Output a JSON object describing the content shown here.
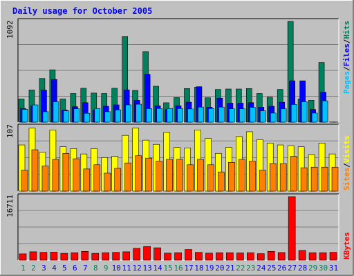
{
  "title": "Daily usage for October 2005",
  "colors": {
    "background": "#c0c0c0",
    "plot_bg": "#c0c0c0",
    "title": "#0000ff",
    "hits": "#00805c",
    "files": "#0000ff",
    "pages": "#00c0ff",
    "visits": "#ffff00",
    "sites": "#ff8000",
    "kbytes": "#ff0000",
    "weekend_label": "#00805c",
    "weekday_label": "#0000ff"
  },
  "chart_data": [
    {
      "type": "bar",
      "name": "hits-files-pages",
      "ymax_label": "1092",
      "ylim": [
        0,
        1092
      ],
      "legend": [
        "Pages",
        "Files",
        "Hits"
      ],
      "categories": [
        "1",
        "2",
        "3",
        "4",
        "5",
        "6",
        "7",
        "8",
        "9",
        "10",
        "11",
        "12",
        "13",
        "14",
        "15",
        "16",
        "17",
        "18",
        "19",
        "20",
        "21",
        "22",
        "23",
        "24",
        "25",
        "26",
        "27",
        "28",
        "29",
        "30",
        "31"
      ],
      "series": [
        {
          "name": "Hits",
          "values": [
            251,
            349,
            473,
            567,
            251,
            310,
            367,
            315,
            310,
            367,
            929,
            344,
            764,
            389,
            210,
            266,
            364,
            378,
            264,
            354,
            359,
            359,
            364,
            310,
            271,
            354,
            1092,
            251,
            236,
            646,
            1
          ]
        },
        {
          "name": "Files",
          "values": [
            148,
            177,
            347,
            463,
            132,
            167,
            211,
            132,
            172,
            187,
            350,
            236,
            518,
            177,
            137,
            177,
            216,
            384,
            162,
            260,
            206,
            206,
            211,
            162,
            172,
            216,
            448,
            448,
            137,
            325,
            1
          ]
        },
        {
          "name": "Pages",
          "values": [
            139,
            187,
            113,
            221,
            123,
            145,
            96,
            148,
            113,
            133,
            187,
            194,
            147,
            148,
            148,
            148,
            143,
            163,
            148,
            163,
            145,
            145,
            160,
            123,
            98,
            145,
            192,
            221,
            98,
            231,
            1
          ]
        }
      ]
    },
    {
      "type": "bar",
      "name": "visits-sites",
      "ymax_label": "107",
      "ylim": [
        0,
        107
      ],
      "legend": [
        "Sites",
        "Visits"
      ],
      "categories": [
        "1",
        "2",
        "3",
        "4",
        "5",
        "6",
        "7",
        "8",
        "9",
        "10",
        "11",
        "12",
        "13",
        "14",
        "15",
        "16",
        "17",
        "18",
        "19",
        "20",
        "21",
        "22",
        "23",
        "24",
        "25",
        "26",
        "27",
        "28",
        "29",
        "30",
        "31"
      ],
      "series": [
        {
          "name": "Visits",
          "values": [
            77,
            105,
            65,
            102,
            74,
            71,
            62,
            71,
            56,
            58,
            93,
            105,
            85,
            78,
            98,
            73,
            72,
            102,
            88,
            63,
            73,
            91,
            99,
            86,
            80,
            77,
            76,
            74,
            61,
            80,
            62
          ]
        },
        {
          "name": "Sites",
          "values": [
            35,
            69,
            42,
            53,
            63,
            54,
            37,
            44,
            30,
            38,
            47,
            59,
            55,
            50,
            53,
            53,
            44,
            53,
            44,
            32,
            48,
            53,
            50,
            35,
            46,
            46,
            58,
            39,
            40,
            40,
            40
          ]
        }
      ]
    },
    {
      "type": "bar",
      "name": "kbytes",
      "ymax_label": "16711",
      "ylim": [
        0,
        16711
      ],
      "legend": [
        "KBytes"
      ],
      "categories": [
        "1",
        "2",
        "3",
        "4",
        "5",
        "6",
        "7",
        "8",
        "9",
        "10",
        "11",
        "12",
        "13",
        "14",
        "15",
        "16",
        "17",
        "18",
        "19",
        "20",
        "21",
        "22",
        "23",
        "24",
        "25",
        "26",
        "27",
        "28",
        "29",
        "30",
        "31"
      ],
      "series": [
        {
          "name": "KBytes",
          "values": [
            1650,
            2200,
            2050,
            2100,
            1800,
            1950,
            2300,
            1800,
            1950,
            2050,
            2200,
            3100,
            3600,
            3250,
            1850,
            1950,
            2800,
            2050,
            1850,
            1950,
            1950,
            1900,
            1950,
            1700,
            2300,
            2000,
            16711,
            2550,
            1950,
            1950,
            2050
          ]
        }
      ]
    }
  ],
  "x_axis": {
    "labels": [
      "1",
      "2",
      "3",
      "4",
      "5",
      "6",
      "7",
      "8",
      "9",
      "10",
      "11",
      "12",
      "13",
      "14",
      "15",
      "16",
      "17",
      "18",
      "19",
      "20",
      "21",
      "22",
      "23",
      "24",
      "25",
      "26",
      "27",
      "28",
      "29",
      "30",
      "31"
    ],
    "weekend": [
      1,
      2,
      8,
      9,
      15,
      16,
      22,
      23,
      29,
      30
    ]
  }
}
